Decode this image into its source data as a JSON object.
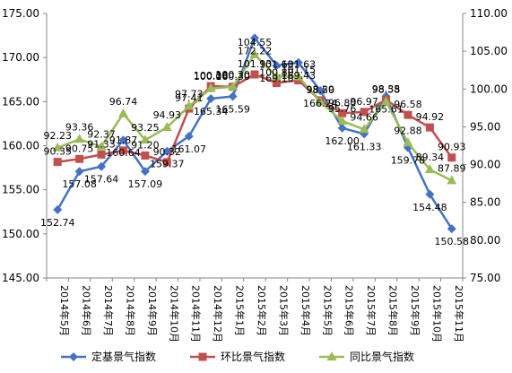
{
  "chart_data": {
    "type": "line",
    "categories": [
      "2014年5月",
      "2014年6月",
      "2014年7月",
      "2014年8月",
      "2014年9月",
      "2014年10月",
      "2014年11月",
      "2014年12月",
      "2015年1月",
      "2015年2月",
      "2015年3月",
      "2015年4月",
      "2015年5月",
      "2015年6月",
      "2015年7月",
      "2015年8月",
      "2015年9月",
      "2015年10月",
      "2015年11月"
    ],
    "y_left": {
      "min": 145,
      "max": 175,
      "step": 5,
      "decimals": 2
    },
    "y_right": {
      "min": 75,
      "max": 110,
      "step": 5,
      "decimals": 2
    },
    "grid": false,
    "legend_position": "bottom",
    "series": [
      {
        "name": "定基景气指数",
        "axis": "left",
        "color": "#4472C4",
        "marker": "diamond",
        "values": [
          152.74,
          157.08,
          157.64,
          160.64,
          157.09,
          159.37,
          161.07,
          165.34,
          165.59,
          172.22,
          169.1,
          169.43,
          166.24,
          162.0,
          161.33,
          165.61,
          159.78,
          154.48,
          150.58
        ],
        "labels": [
          "152.74",
          "157.08",
          "157.64",
          "160.64",
          "157.09",
          "159.37",
          "161.07",
          "165.34",
          "165.59",
          "172.22",
          "169.10",
          "169.43",
          "166.24",
          "162.00",
          "161.33",
          "165.61",
          "159.78",
          "154.48",
          "150.58"
        ]
      },
      {
        "name": "环比景气指数",
        "axis": "right",
        "color": "#C0504D",
        "marker": "square",
        "values": [
          90.35,
          90.75,
          91.33,
          91.87,
          91.2,
          90.32,
          97.41,
          100.38,
          100.3,
          101.93,
          100.8,
          101.15,
          98.5,
          96.8,
          96.97,
          98.58,
          96.58,
          94.92,
          90.93
        ],
        "labels": [
          "90.35",
          "90.75",
          "91.33",
          "91.87",
          "91.20",
          "90.32",
          "97.41",
          "100.38",
          "100.30",
          "101.93",
          "100.80",
          "101.15",
          "98.50",
          "96.80",
          "96.97",
          "98.58",
          "96.58",
          "94.92",
          "90.93"
        ]
      },
      {
        "name": "同比景气指数",
        "axis": "right",
        "color": "#9BBB59",
        "marker": "triangle",
        "values": [
          92.23,
          93.36,
          92.37,
          96.74,
          93.25,
          94.93,
          97.73,
          100.06,
          100.3,
          104.55,
          101.63,
          101.63,
          98.29,
          95.76,
          94.66,
          98.35,
          92.88,
          89.34,
          87.89
        ],
        "labels": [
          "92.23",
          "93.36",
          "92.37",
          "96.74",
          "93.25",
          "94.93",
          "97.73",
          "100.06",
          "100.30",
          "104.55",
          "101.63",
          "101.63",
          "98.29",
          "95.76",
          "94.66",
          "98.35",
          "92.88",
          "89.34",
          "87.89"
        ]
      }
    ]
  }
}
